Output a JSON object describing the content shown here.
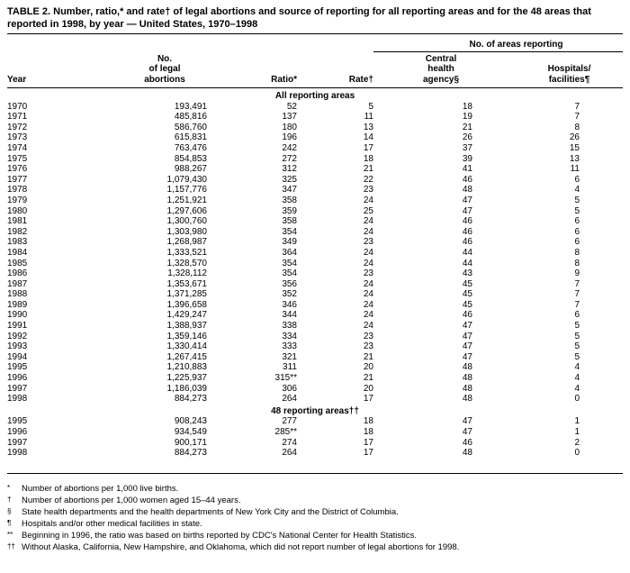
{
  "title": "TABLE 2. Number, ratio,* and rate† of legal abortions and source of reporting for all reporting areas and for the 48 areas that reported in 1998, by year — United States, 1970–1998",
  "table": {
    "group_header": "No. of areas reporting",
    "column_keys": [
      "year",
      "abortions",
      "ratio",
      "rate",
      "central",
      "hospitals"
    ],
    "columns": {
      "year": "Year",
      "abortions": [
        "No.",
        "of legal",
        "abortions"
      ],
      "ratio": "Ratio*",
      "rate": "Rate†",
      "central": [
        "Central",
        "health",
        "agency§"
      ],
      "hospitals": [
        "Hospitals/",
        "facilities¶"
      ]
    },
    "sections": [
      {
        "label": "All reporting areas",
        "rows": [
          [
            "1970",
            "193,491",
            "52",
            "5",
            "18",
            "7"
          ],
          [
            "1971",
            "485,816",
            "137",
            "11",
            "19",
            "7"
          ],
          [
            "1972",
            "586,760",
            "180",
            "13",
            "21",
            "8"
          ],
          [
            "1973",
            "615,831",
            "196",
            "14",
            "26",
            "26"
          ],
          [
            "1974",
            "763,476",
            "242",
            "17",
            "37",
            "15"
          ],
          [
            "1975",
            "854,853",
            "272",
            "18",
            "39",
            "13"
          ],
          [
            "1976",
            "988,267",
            "312",
            "21",
            "41",
            "11"
          ],
          [
            "1977",
            "1,079,430",
            "325",
            "22",
            "46",
            "6"
          ],
          [
            "1978",
            "1,157,776",
            "347",
            "23",
            "48",
            "4"
          ],
          [
            "1979",
            "1,251,921",
            "358",
            "24",
            "47",
            "5"
          ],
          [
            "1980",
            "1,297,606",
            "359",
            "25",
            "47",
            "5"
          ],
          [
            "1981",
            "1,300,760",
            "358",
            "24",
            "46",
            "6"
          ],
          [
            "1982",
            "1,303,980",
            "354",
            "24",
            "46",
            "6"
          ],
          [
            "1983",
            "1,268,987",
            "349",
            "23",
            "46",
            "6"
          ],
          [
            "1984",
            "1,333,521",
            "364",
            "24",
            "44",
            "8"
          ],
          [
            "1985",
            "1,328,570",
            "354",
            "24",
            "44",
            "8"
          ],
          [
            "1986",
            "1,328,112",
            "354",
            "23",
            "43",
            "9"
          ],
          [
            "1987",
            "1,353,671",
            "356",
            "24",
            "45",
            "7"
          ],
          [
            "1988",
            "1,371,285",
            "352",
            "24",
            "45",
            "7"
          ],
          [
            "1989",
            "1,396,658",
            "346",
            "24",
            "45",
            "7"
          ],
          [
            "1990",
            "1,429,247",
            "344",
            "24",
            "46",
            "6"
          ],
          [
            "1991",
            "1,388,937",
            "338",
            "24",
            "47",
            "5"
          ],
          [
            "1992",
            "1,359,146",
            "334",
            "23",
            "47",
            "5"
          ],
          [
            "1993",
            "1,330,414",
            "333",
            "23",
            "47",
            "5"
          ],
          [
            "1994",
            "1,267,415",
            "321",
            "21",
            "47",
            "5"
          ],
          [
            "1995",
            "1,210,883",
            "311",
            "20",
            "48",
            "4"
          ],
          [
            "1996",
            "1,225,937",
            "315**",
            "21",
            "48",
            "4"
          ],
          [
            "1997",
            "1,186,039",
            "306",
            "20",
            "48",
            "4"
          ],
          [
            "1998",
            "884,273",
            "264",
            "17",
            "48",
            "0"
          ]
        ]
      },
      {
        "label": "48 reporting areas††",
        "rows": [
          [
            "1995",
            "908,243",
            "277",
            "18",
            "47",
            "1"
          ],
          [
            "1996",
            "934,549",
            "285**",
            "18",
            "47",
            "1"
          ],
          [
            "1997",
            "900,171",
            "274",
            "17",
            "46",
            "2"
          ],
          [
            "1998",
            "884,273",
            "264",
            "17",
            "48",
            "0"
          ]
        ]
      }
    ]
  },
  "footnotes": [
    {
      "symbol": "*",
      "text": "Number of abortions per 1,000 live births."
    },
    {
      "symbol": "†",
      "text": "Number of abortions per 1,000 women aged 15–44 years."
    },
    {
      "symbol": "§",
      "text": "State health departments and the health departments of New York City and the District of Columbia."
    },
    {
      "symbol": "¶",
      "text": "Hospitals and/or other medical facilities in state."
    },
    {
      "symbol": "**",
      "text": "Beginning in 1996, the ratio was based on births reported by CDC's National Center for Health Statistics."
    },
    {
      "symbol": "††",
      "text": "Without Alaska, California, New Hampshire, and Oklahoma, which did not report number of legal abortions for 1998."
    }
  ]
}
